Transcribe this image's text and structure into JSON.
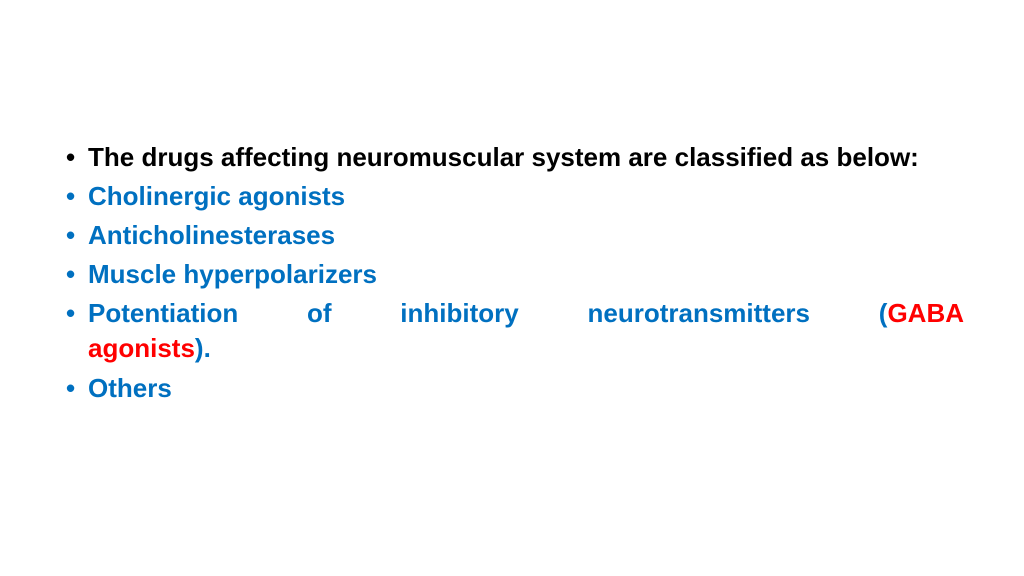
{
  "slide": {
    "background_color": "#ffffff",
    "font_family": "Comic Sans MS",
    "font_size_pt": 26,
    "bullets": [
      {
        "text": "The drugs affecting neuromuscular system are classified as below:",
        "color": "#000000",
        "bold": false
      },
      {
        "text": "Cholinergic agonists",
        "color": "#0070c0",
        "bold": true
      },
      {
        "text": "Anticholinesterases",
        "color": "#0070c0",
        "bold": true
      },
      {
        "text": "Muscle hyperpolarizers",
        "color": "#0070c0",
        "bold": true
      },
      {
        "justified": true,
        "segments": {
          "pre": " Potentiation of inhibitory neurotransmitters (",
          "highlight": "GABA agonists",
          "post": ").",
          "line1_pre": " Potentiation   of   inhibitory   neurotransmitters   (",
          "line1_highlight": "GABA",
          "line2_highlight": "agonists",
          "line2_post": ")."
        },
        "color": "#0070c0",
        "highlight_color": "#ff0000",
        "bold": true
      },
      {
        "text": "Others",
        "color": "#0070c0",
        "bold": true
      }
    ]
  }
}
